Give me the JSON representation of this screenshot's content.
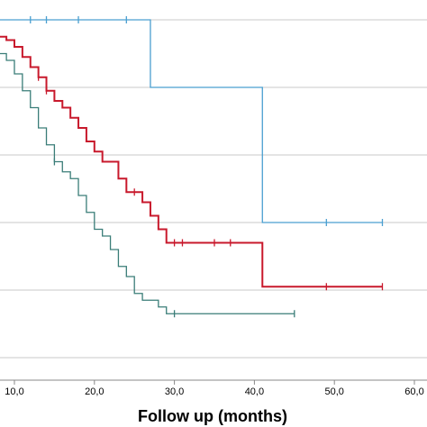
{
  "chart_data": {
    "type": "line",
    "title": "",
    "xlabel": "Follow up (months)",
    "ylabel": "",
    "xlim": [
      8,
      60
    ],
    "ylim": [
      0,
      1
    ],
    "x_ticks": [
      10,
      20,
      30,
      40,
      50,
      60
    ],
    "x_tick_labels": [
      "10,0",
      "20,0",
      "30,0",
      "40,0",
      "50,0",
      "60,0"
    ],
    "y_gridlines": [
      0.0,
      0.2,
      0.4,
      0.6,
      0.8,
      1.0
    ],
    "grid": true,
    "legend": "none",
    "colors": {
      "series_blue": "#4a9fd0",
      "series_red": "#c8192c",
      "series_teal": "#3a7d78",
      "grid": "#c8c8c8",
      "axis": "#888888"
    },
    "series": [
      {
        "color": "#4a9fd0",
        "steps": [
          [
            8,
            1.0
          ],
          [
            27,
            0.8
          ],
          [
            41,
            0.4
          ],
          [
            56,
            0.4
          ]
        ],
        "censored": [
          12,
          14,
          18,
          24,
          49,
          56
        ]
      },
      {
        "color": "#c8192c",
        "steps": [
          [
            8,
            0.95
          ],
          [
            9,
            0.94
          ],
          [
            10,
            0.92
          ],
          [
            11,
            0.89
          ],
          [
            12,
            0.86
          ],
          [
            13,
            0.83
          ],
          [
            14,
            0.79
          ],
          [
            15,
            0.76
          ],
          [
            16,
            0.74
          ],
          [
            17,
            0.71
          ],
          [
            18,
            0.68
          ],
          [
            19,
            0.64
          ],
          [
            20,
            0.61
          ],
          [
            21,
            0.58
          ],
          [
            23,
            0.53
          ],
          [
            24,
            0.49
          ],
          [
            26,
            0.46
          ],
          [
            27,
            0.42
          ],
          [
            28,
            0.38
          ],
          [
            29,
            0.34
          ],
          [
            41,
            0.21
          ],
          [
            56,
            0.21
          ]
        ],
        "censored": [
          30,
          13,
          14,
          25,
          31,
          35,
          37,
          49,
          56
        ]
      },
      {
        "color": "#3a7d78",
        "steps": [
          [
            8,
            0.9
          ],
          [
            9,
            0.88
          ],
          [
            10,
            0.84
          ],
          [
            11,
            0.79
          ],
          [
            12,
            0.74
          ],
          [
            13,
            0.68
          ],
          [
            14,
            0.63
          ],
          [
            15,
            0.58
          ],
          [
            16,
            0.55
          ],
          [
            17,
            0.53
          ],
          [
            18,
            0.48
          ],
          [
            19,
            0.43
          ],
          [
            20,
            0.38
          ],
          [
            21,
            0.36
          ],
          [
            22,
            0.32
          ],
          [
            23,
            0.27
          ],
          [
            24,
            0.24
          ],
          [
            25,
            0.19
          ],
          [
            26,
            0.17
          ],
          [
            28,
            0.15
          ],
          [
            29,
            0.13
          ],
          [
            45,
            0.13
          ]
        ],
        "censored": [
          15,
          30,
          45
        ]
      }
    ]
  }
}
